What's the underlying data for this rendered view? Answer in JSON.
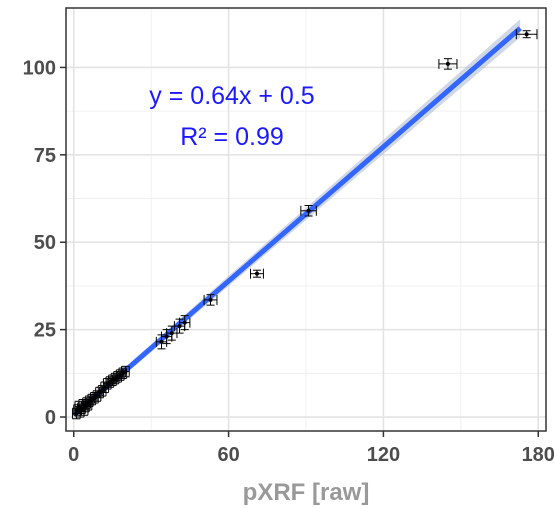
{
  "chart_data": {
    "type": "scatter",
    "title": "",
    "xlabel": "pXRF [raw]",
    "ylabel": "",
    "xlim": [
      -3,
      183
    ],
    "ylim": [
      -4,
      117
    ],
    "x_ticks": [
      0,
      60,
      120,
      180
    ],
    "y_ticks": [
      0,
      25,
      50,
      75,
      100
    ],
    "x_tick_labels": [
      "0",
      "60",
      "120",
      "180"
    ],
    "y_tick_labels": [
      "0",
      "25",
      "50",
      "75",
      "100"
    ],
    "grid": true,
    "legend": "none",
    "annotations": [
      "y = 0.64x + 0.5",
      "R² = 0.99"
    ],
    "fit": {
      "slope": 0.64,
      "intercept": 0.5,
      "x_range": [
        0,
        173
      ]
    },
    "points": [
      {
        "x": 1.0,
        "y": 1.0,
        "xerr": 1.5,
        "yerr": 1.5
      },
      {
        "x": 1.5,
        "y": 2.0,
        "xerr": 1.5,
        "yerr": 1.5
      },
      {
        "x": 2.0,
        "y": 3.0,
        "xerr": 1.5,
        "yerr": 1.5
      },
      {
        "x": 2.5,
        "y": 1.5,
        "xerr": 1.5,
        "yerr": 1.5
      },
      {
        "x": 3.0,
        "y": 2.5,
        "xerr": 1.5,
        "yerr": 1.5
      },
      {
        "x": 3.5,
        "y": 3.5,
        "xerr": 1.5,
        "yerr": 1.5
      },
      {
        "x": 4.0,
        "y": 2.0,
        "xerr": 1.5,
        "yerr": 1.5
      },
      {
        "x": 4.5,
        "y": 3.0,
        "xerr": 1.5,
        "yerr": 1.5
      },
      {
        "x": 5.0,
        "y": 4.0,
        "xerr": 1.5,
        "yerr": 1.5
      },
      {
        "x": 5.5,
        "y": 3.5,
        "xerr": 1.5,
        "yerr": 1.5
      },
      {
        "x": 6.0,
        "y": 4.5,
        "xerr": 1.5,
        "yerr": 1.5
      },
      {
        "x": 7.0,
        "y": 5.0,
        "xerr": 1.5,
        "yerr": 1.5
      },
      {
        "x": 8.0,
        "y": 5.5,
        "xerr": 1.5,
        "yerr": 1.5
      },
      {
        "x": 9.0,
        "y": 6.0,
        "xerr": 1.5,
        "yerr": 1.5
      },
      {
        "x": 10.0,
        "y": 7.0,
        "xerr": 1.5,
        "yerr": 1.5
      },
      {
        "x": 11.0,
        "y": 7.5,
        "xerr": 1.5,
        "yerr": 1.5
      },
      {
        "x": 12.0,
        "y": 8.5,
        "xerr": 1.5,
        "yerr": 1.5
      },
      {
        "x": 13.0,
        "y": 9.5,
        "xerr": 1.5,
        "yerr": 1.5
      },
      {
        "x": 14.0,
        "y": 10.0,
        "xerr": 1.5,
        "yerr": 1.5
      },
      {
        "x": 15.0,
        "y": 10.5,
        "xerr": 1.5,
        "yerr": 1.5
      },
      {
        "x": 16.0,
        "y": 11.0,
        "xerr": 1.5,
        "yerr": 1.5
      },
      {
        "x": 17.0,
        "y": 11.5,
        "xerr": 1.5,
        "yerr": 1.5
      },
      {
        "x": 18.0,
        "y": 12.0,
        "xerr": 1.5,
        "yerr": 1.5
      },
      {
        "x": 19.0,
        "y": 12.5,
        "xerr": 1.5,
        "yerr": 1.5
      },
      {
        "x": 20.0,
        "y": 13.0,
        "xerr": 1.5,
        "yerr": 1.5
      },
      {
        "x": 34.0,
        "y": 21.5,
        "xerr": 2.0,
        "yerr": 2.0
      },
      {
        "x": 36.0,
        "y": 23.0,
        "xerr": 2.0,
        "yerr": 2.0
      },
      {
        "x": 38.0,
        "y": 24.0,
        "xerr": 2.0,
        "yerr": 2.0
      },
      {
        "x": 41.0,
        "y": 26.0,
        "xerr": 2.0,
        "yerr": 2.0
      },
      {
        "x": 43.0,
        "y": 27.0,
        "xerr": 2.0,
        "yerr": 2.0
      },
      {
        "x": 53.0,
        "y": 33.5,
        "xerr": 2.5,
        "yerr": 1.5
      },
      {
        "x": 71.0,
        "y": 41.0,
        "xerr": 2.5,
        "yerr": 1.0
      },
      {
        "x": 91.0,
        "y": 59.0,
        "xerr": 3.0,
        "yerr": 1.5
      },
      {
        "x": 145.0,
        "y": 101.0,
        "xerr": 3.5,
        "yerr": 1.5
      },
      {
        "x": 175.5,
        "y": 109.5,
        "xerr": 4.0,
        "yerr": 1.0
      }
    ]
  }
}
